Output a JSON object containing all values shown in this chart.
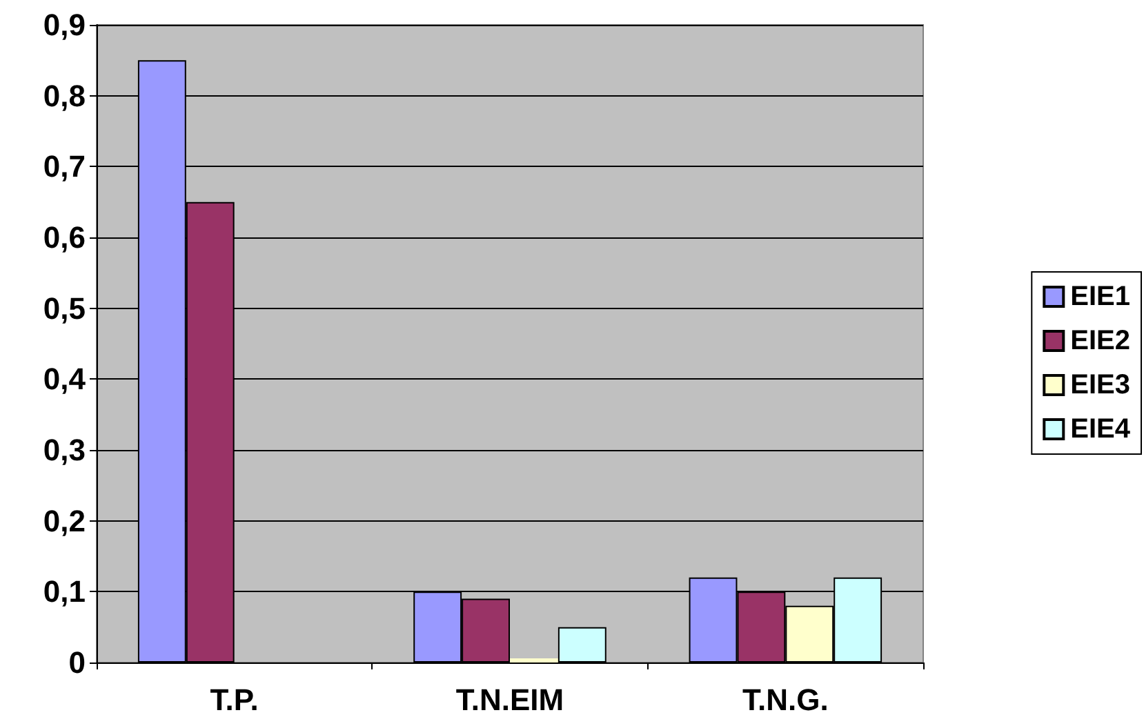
{
  "chart_data": {
    "type": "bar",
    "categories": [
      "T.P.",
      "T.N.EIM",
      "T.N.G."
    ],
    "series": [
      {
        "name": "EIE1",
        "color": "#9999ff",
        "values": [
          0.85,
          0.1,
          0.12
        ]
      },
      {
        "name": "EIE2",
        "color": "#993366",
        "values": [
          0.65,
          0.09,
          0.1
        ]
      },
      {
        "name": "EIE3",
        "color": "#ffffcc",
        "values": [
          null,
          0,
          0.08
        ]
      },
      {
        "name": "EIE4",
        "color": "#ccffff",
        "values": [
          null,
          0.05,
          0.12
        ]
      }
    ],
    "ylim": [
      0,
      0.9
    ],
    "yticks": [
      {
        "value": 0,
        "label": "0"
      },
      {
        "value": 0.1,
        "label": "0,1"
      },
      {
        "value": 0.2,
        "label": "0,2"
      },
      {
        "value": 0.3,
        "label": "0,3"
      },
      {
        "value": 0.4,
        "label": "0,4"
      },
      {
        "value": 0.5,
        "label": "0,5"
      },
      {
        "value": 0.6,
        "label": "0,6"
      },
      {
        "value": 0.7,
        "label": "0,7"
      },
      {
        "value": 0.8,
        "label": "0,8"
      },
      {
        "value": 0.9,
        "label": "0,9"
      }
    ],
    "grid": "y",
    "legend": "right"
  }
}
